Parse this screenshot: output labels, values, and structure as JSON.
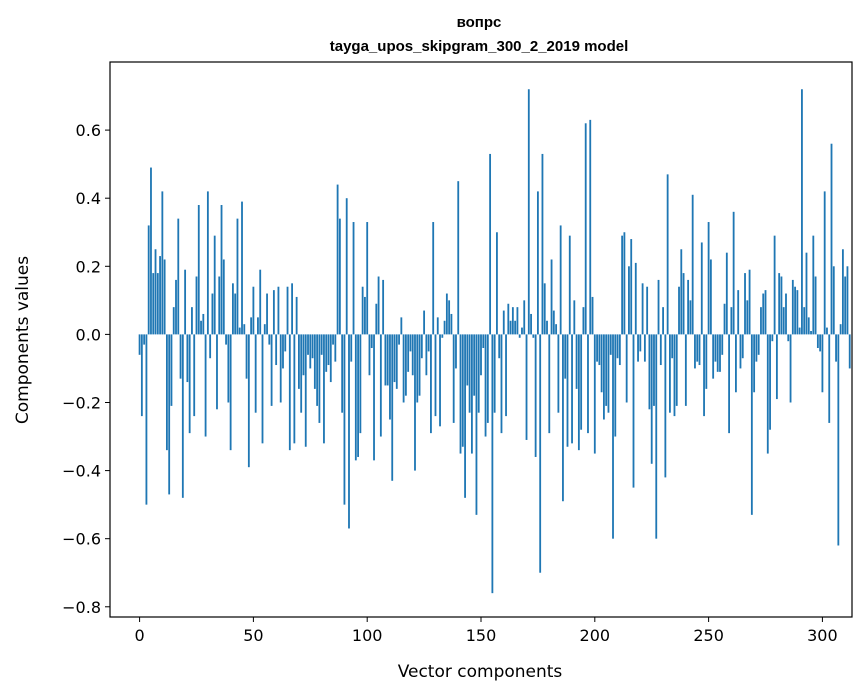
{
  "chart_data": {
    "type": "bar",
    "title": "вопрс",
    "subtitle": "tayga_upos_skipgram_300_2_2019 model",
    "xlabel": "Vector components",
    "ylabel": "Components values",
    "xlim": [
      -13,
      313
    ],
    "ylim": [
      -0.83,
      0.8
    ],
    "xticks": [
      0,
      50,
      100,
      150,
      200,
      250,
      300
    ],
    "yticks": [
      -0.8,
      -0.6,
      -0.4,
      -0.2,
      0.0,
      0.2,
      0.4,
      0.6
    ],
    "ytick_labels": [
      "−0.8",
      "−0.6",
      "−0.4",
      "−0.2",
      "0.0",
      "0.2",
      "0.4",
      "0.6"
    ],
    "grid": false,
    "bar_color": "#1f77b4",
    "x_start": 0,
    "values": [
      -0.06,
      -0.24,
      -0.03,
      -0.5,
      0.32,
      0.49,
      0.18,
      0.25,
      0.18,
      0.23,
      0.42,
      0.22,
      -0.34,
      -0.47,
      -0.21,
      0.08,
      0.16,
      0.34,
      -0.13,
      -0.48,
      0.19,
      -0.14,
      -0.29,
      0.08,
      -0.24,
      0.17,
      0.38,
      0.04,
      0.06,
      -0.3,
      0.42,
      -0.07,
      0.12,
      0.29,
      -0.22,
      0.17,
      0.38,
      0.22,
      -0.03,
      -0.2,
      -0.34,
      0.15,
      0.12,
      0.34,
      0.02,
      0.39,
      0.03,
      -0.13,
      -0.39,
      0.05,
      0.14,
      -0.23,
      0.05,
      0.19,
      -0.32,
      0.03,
      0.12,
      -0.03,
      -0.21,
      0.13,
      -0.09,
      0.14,
      -0.2,
      -0.1,
      -0.05,
      0.14,
      -0.34,
      0.15,
      -0.32,
      0.11,
      -0.16,
      -0.23,
      -0.12,
      -0.33,
      -0.06,
      -0.1,
      -0.07,
      -0.16,
      -0.21,
      -0.26,
      -0.06,
      -0.32,
      -0.11,
      -0.09,
      -0.14,
      -0.03,
      -0.08,
      0.44,
      0.34,
      -0.23,
      -0.5,
      0.4,
      -0.57,
      -0.08,
      0.33,
      -0.37,
      -0.36,
      -0.29,
      0.14,
      0.11,
      0.33,
      -0.12,
      -0.04,
      -0.37,
      0.09,
      0.17,
      -0.3,
      0.16,
      -0.15,
      -0.15,
      -0.25,
      -0.43,
      -0.14,
      -0.16,
      -0.03,
      0.05,
      -0.2,
      -0.18,
      -0.11,
      -0.05,
      -0.12,
      -0.4,
      -0.2,
      -0.18,
      -0.07,
      0.07,
      -0.12,
      -0.05,
      -0.29,
      0.33,
      -0.24,
      0.05,
      -0.27,
      -0.01,
      0.04,
      0.12,
      0.1,
      0.06,
      -0.26,
      -0.1,
      0.45,
      -0.35,
      -0.33,
      -0.48,
      -0.15,
      -0.23,
      -0.35,
      -0.18,
      -0.53,
      -0.23,
      -0.12,
      -0.04,
      -0.3,
      -0.26,
      0.53,
      -0.76,
      -0.23,
      0.3,
      -0.07,
      -0.29,
      0.07,
      -0.24,
      0.09,
      0.04,
      0.08,
      0.04,
      0.08,
      -0.01,
      0.02,
      0.1,
      -0.31,
      0.72,
      0.06,
      -0.01,
      -0.36,
      0.42,
      -0.7,
      0.53,
      0.15,
      0.04,
      -0.29,
      0.22,
      0.07,
      0.03,
      -0.23,
      0.32,
      -0.49,
      -0.13,
      -0.33,
      0.29,
      -0.32,
      0.1,
      -0.16,
      -0.34,
      -0.28,
      0.08,
      0.62,
      -0.29,
      0.63,
      0.11,
      -0.35,
      -0.08,
      -0.09,
      -0.17,
      -0.25,
      -0.21,
      -0.23,
      -0.06,
      -0.6,
      -0.3,
      -0.07,
      -0.09,
      0.29,
      0.3,
      -0.2,
      0.2,
      0.28,
      -0.45,
      0.21,
      -0.08,
      -0.05,
      0.15,
      -0.08,
      0.14,
      -0.22,
      -0.38,
      -0.21,
      -0.6,
      0.16,
      -0.09,
      0.08,
      -0.42,
      0.47,
      -0.23,
      -0.07,
      -0.24,
      -0.21,
      0.14,
      0.25,
      0.18,
      -0.21,
      0.16,
      0.1,
      0.41,
      -0.1,
      -0.08,
      -0.09,
      0.27,
      -0.24,
      -0.16,
      0.33,
      0.22,
      -0.13,
      -0.08,
      -0.11,
      -0.11,
      -0.06,
      0.09,
      0.24,
      -0.29,
      0.08,
      0.36,
      -0.17,
      0.13,
      -0.1,
      -0.07,
      0.18,
      0.1,
      0.19,
      -0.53,
      -0.17,
      -0.08,
      -0.06,
      0.08,
      0.12,
      0.13,
      -0.35,
      -0.28,
      -0.02,
      0.29,
      -0.19,
      0.18,
      0.17,
      0.08,
      0.12,
      -0.02,
      -0.2,
      0.16,
      0.14,
      0.13,
      0.02,
      0.72,
      0.08,
      0.24,
      0.05,
      0.01,
      0.29,
      0.17,
      -0.04,
      -0.05,
      -0.17,
      0.42,
      0.02,
      -0.26,
      0.56,
      0.2,
      -0.08,
      -0.62,
      0.03,
      0.25,
      0.17,
      0.2,
      -0.1
    ]
  }
}
